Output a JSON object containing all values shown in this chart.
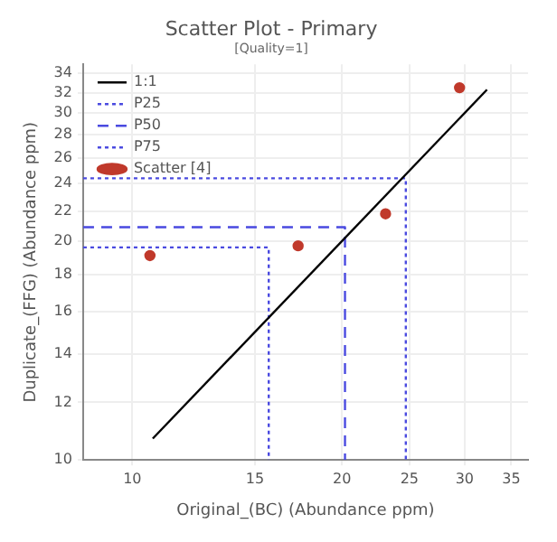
{
  "chart_data": {
    "type": "scatter",
    "title": "Scatter Plot - Primary",
    "subtitle": "[Quality=1]",
    "xlabel": "Original_(BC) (Abundance ppm)",
    "ylabel": "Duplicate_(FFG) (Abundance ppm)",
    "log": "xy",
    "grid": true,
    "legend": "top left",
    "xlim": [
      8.5,
      37
    ],
    "ylim": [
      10,
      35
    ],
    "xticks": [
      10,
      15,
      20,
      25,
      30,
      35
    ],
    "yticks": [
      10,
      12,
      14,
      16,
      18,
      20,
      22,
      24,
      26,
      28,
      30,
      32,
      34
    ],
    "series": [
      {
        "name": "1:1",
        "type": "line",
        "color": "#000000",
        "line_style": "solid",
        "marker": "none",
        "x": [
          10.7,
          32.3
        ],
        "values": [
          10.7,
          32.3
        ]
      },
      {
        "name": "P25",
        "type": "line",
        "color": "#4a4ae0",
        "line_style": "dotted",
        "marker": "none",
        "x": [
          8.5,
          15.7,
          15.7
        ],
        "values": [
          19.6,
          19.6,
          10
        ]
      },
      {
        "name": "P50",
        "type": "line",
        "color": "#4a4ae0",
        "line_style": "dashed",
        "marker": "none",
        "x": [
          8.5,
          20.2,
          20.2
        ],
        "values": [
          20.9,
          20.9,
          10
        ]
      },
      {
        "name": "P75",
        "type": "line",
        "color": "#4a4ae0",
        "line_style": "dotted",
        "marker": "none",
        "x": [
          8.5,
          24.7,
          24.7
        ],
        "values": [
          24.4,
          24.4,
          10
        ]
      },
      {
        "name": "Scatter [4]",
        "type": "scatter",
        "color": "#c0392b",
        "marker": "circle",
        "x": [
          10.6,
          17.3,
          23.1,
          29.5
        ],
        "values": [
          19.1,
          19.7,
          21.8,
          32.5
        ]
      }
    ]
  }
}
